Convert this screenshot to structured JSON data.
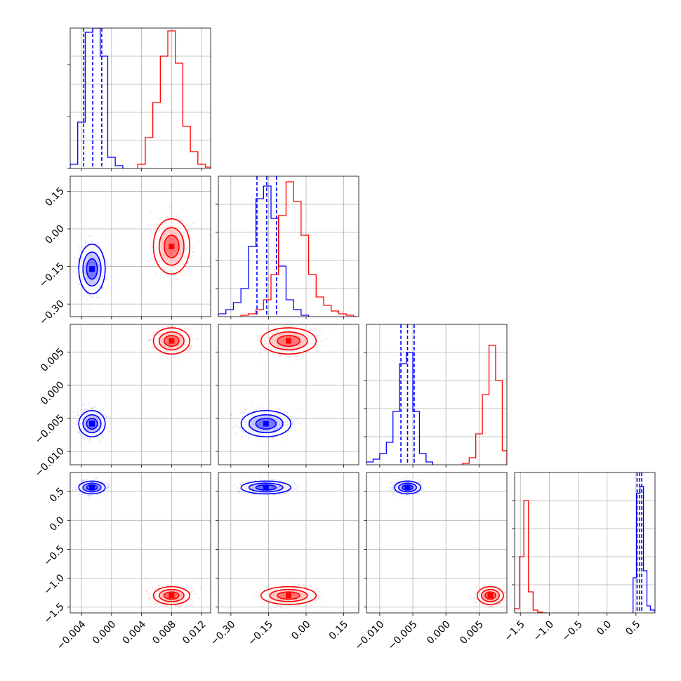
{
  "chart_data": {
    "type": "corner",
    "parameters": [
      {
        "range": [
          -0.0055,
          0.0132
        ],
        "ticks": [
          "−0.004",
          "0.000",
          "0.004",
          "0.008",
          "0.012"
        ],
        "tick_values": [
          -0.004,
          0,
          0.004,
          0.008,
          0.012
        ]
      },
      {
        "range": [
          -0.35,
          0.21
        ],
        "ticks": [
          "−0.30",
          "−0.15",
          "0.00",
          "0.15"
        ],
        "tick_values": [
          -0.3,
          -0.15,
          0.0,
          0.15
        ]
      },
      {
        "range": [
          -0.012,
          0.0092
        ],
        "ticks": [
          "−0.010",
          "−0.005",
          "0.000",
          "0.005"
        ],
        "tick_values": [
          -0.01,
          -0.005,
          0.0,
          0.005
        ]
      },
      {
        "range": [
          -1.6,
          0.83
        ],
        "ticks": [
          "−1.5",
          "−1.0",
          "−0.5",
          "0.0",
          "0.5"
        ],
        "tick_values": [
          -1.5,
          -1.0,
          -0.5,
          0.0,
          0.5
        ]
      }
    ],
    "series": [
      {
        "color": "#0000ff",
        "means": [
          -0.0026,
          -0.16,
          -0.0058,
          0.57
        ],
        "sigmas": [
          0.0008,
          0.045,
          0.0009,
          0.05
        ],
        "quantiles": [
          [
            -0.0037,
            -0.0025,
            -0.0013
          ],
          [
            -0.196,
            -0.157,
            -0.118
          ],
          [
            -0.0068,
            -0.0058,
            -0.0048
          ],
          [
            0.52,
            0.565,
            0.6
          ]
        ],
        "histograms": [
          {
            "edges": [
              -0.0055,
              -0.0045,
              -0.0035,
              -0.0025,
              -0.0015,
              -0.0005,
              0.0005,
              0.0015
            ],
            "counts": [
              0.03,
              0.33,
              0.97,
              1.0,
              0.8,
              0.08,
              0.02
            ]
          },
          {
            "edges": [
              -0.35,
              -0.32,
              -0.29,
              -0.26,
              -0.23,
              -0.2,
              -0.17,
              -0.14,
              -0.11,
              -0.08,
              -0.05,
              -0.02,
              0.01
            ],
            "counts": [
              0.02,
              0.05,
              0.1,
              0.2,
              0.5,
              0.84,
              0.93,
              0.7,
              0.36,
              0.12,
              0.05,
              0.01
            ]
          },
          {
            "edges": [
              -0.012,
              -0.011,
              -0.01,
              -0.009,
              -0.008,
              -0.007,
              -0.006,
              -0.005,
              -0.004,
              -0.003,
              -0.002
            ],
            "counts": [
              0.02,
              0.04,
              0.08,
              0.16,
              0.38,
              0.72,
              0.8,
              0.38,
              0.08,
              0.02
            ]
          },
          {
            "edges": [
              0.45,
              0.51,
              0.57,
              0.63,
              0.69,
              0.75,
              0.83
            ],
            "counts": [
              0.25,
              0.85,
              0.9,
              0.3,
              0.05,
              0.02
            ]
          }
        ]
      },
      {
        "color": "#ff0000",
        "means": [
          0.008,
          -0.07,
          0.0067,
          -1.3
        ],
        "sigmas": [
          0.0011,
          0.05,
          0.0009,
          0.07
        ],
        "histograms": [
          {
            "edges": [
              0.0035,
              0.0045,
              0.0055,
              0.0065,
              0.0075,
              0.0085,
              0.0095,
              0.0105,
              0.0115,
              0.0125,
              0.0132
            ],
            "counts": [
              0.03,
              0.22,
              0.47,
              0.8,
              0.98,
              0.75,
              0.3,
              0.12,
              0.03,
              0.01
            ]
          },
          {
            "edges": [
              -0.26,
              -0.23,
              -0.2,
              -0.17,
              -0.14,
              -0.11,
              -0.08,
              -0.05,
              -0.02,
              0.01,
              0.04,
              0.07,
              0.1,
              0.13,
              0.16,
              0.19
            ],
            "counts": [
              0.01,
              0.02,
              0.05,
              0.12,
              0.3,
              0.72,
              0.96,
              0.82,
              0.58,
              0.3,
              0.14,
              0.08,
              0.04,
              0.02,
              0.01
            ]
          },
          {
            "edges": [
              0.0025,
              0.0035,
              0.0045,
              0.0055,
              0.0065,
              0.0075,
              0.0085,
              0.0092
            ],
            "counts": [
              0.01,
              0.05,
              0.22,
              0.5,
              0.85,
              0.6,
              0.1
            ]
          },
          {
            "edges": [
              -1.6,
              -1.52,
              -1.44,
              -1.36,
              -1.28,
              -1.2,
              -1.12,
              -1.04
            ],
            "counts": [
              0.03,
              0.4,
              0.8,
              0.15,
              0.02,
              0.005,
              0.0
            ]
          }
        ]
      }
    ]
  }
}
